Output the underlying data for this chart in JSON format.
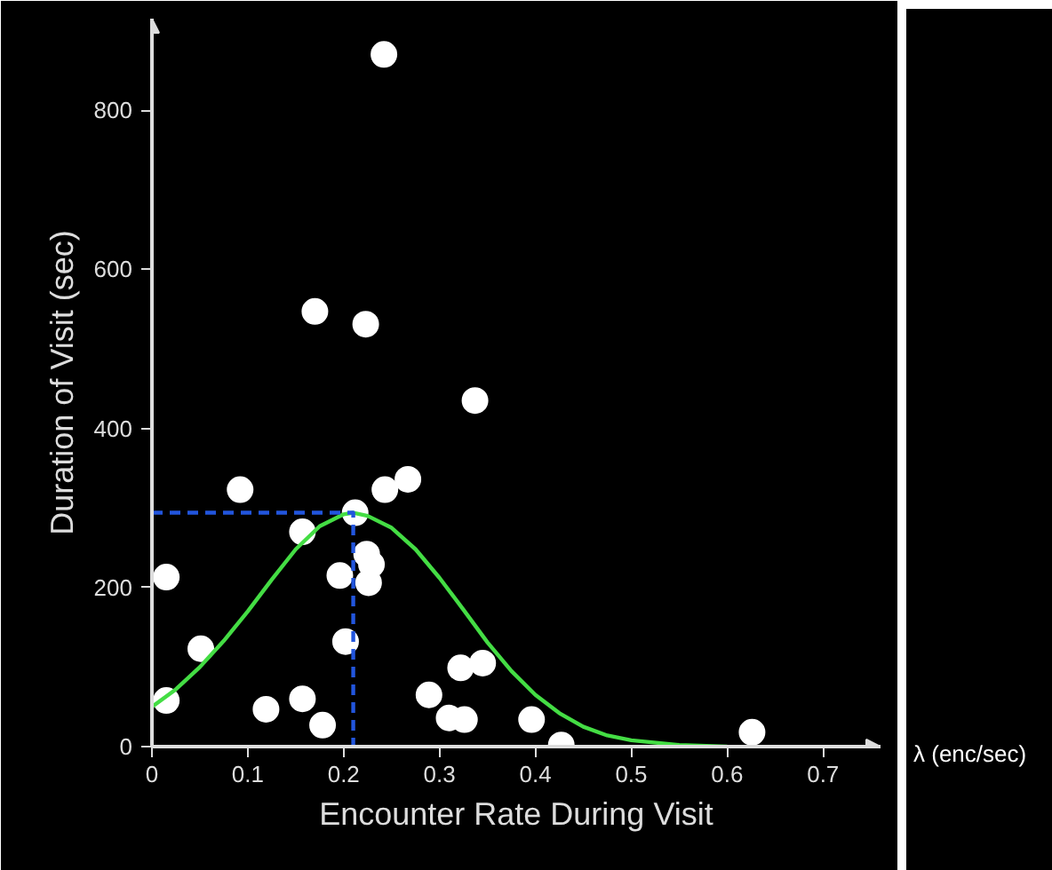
{
  "chart_data": {
    "type": "scatter",
    "xlabel": "Encounter Rate During Visit",
    "ylabel": "Duration of Visit (sec)",
    "annotations": [
      "λ (enc/sec)"
    ],
    "xlim": [
      0,
      0.76
    ],
    "ylim": [
      0,
      915
    ],
    "xticks": [
      0,
      0.1,
      0.2,
      0.3,
      0.4,
      0.5,
      0.6,
      0.7
    ],
    "yticks": [
      0,
      200,
      400,
      600,
      800
    ],
    "grid": false,
    "marker": "circle",
    "series": [
      {
        "color": "#ffffff",
        "x": [
          0.015,
          0.015,
          0.051,
          0.092,
          0.119,
          0.157,
          0.157,
          0.178,
          0.17,
          0.223,
          0.242,
          0.337,
          0.196,
          0.202,
          0.212,
          0.224,
          0.229,
          0.226,
          0.243,
          0.267,
          0.289,
          0.31,
          0.326,
          0.322,
          0.345,
          0.396,
          0.427,
          0.626
        ],
        "values": [
          58,
          213,
          123,
          323,
          47,
          60,
          270,
          27,
          547,
          531,
          870,
          435,
          215,
          132,
          294,
          242,
          229,
          206,
          323,
          336,
          65,
          36,
          34,
          99,
          105,
          34,
          2,
          18
        ]
      },
      {
        "type": "line",
        "marker": "none",
        "color": "#44dd44",
        "line_style": "solid",
        "x": [
          0,
          0.025,
          0.05,
          0.075,
          0.1,
          0.125,
          0.15,
          0.175,
          0.2,
          0.21,
          0.225,
          0.25,
          0.275,
          0.3,
          0.325,
          0.35,
          0.375,
          0.4,
          0.425,
          0.45,
          0.475,
          0.5,
          0.55,
          0.6
        ],
        "values": [
          50,
          72,
          100,
          133,
          170,
          210,
          248,
          277,
          292,
          294,
          290,
          275,
          248,
          212,
          172,
          131,
          95,
          65,
          42,
          25,
          14,
          8,
          2,
          0
        ]
      },
      {
        "type": "line",
        "marker": "none",
        "color": "#2255dd",
        "line_style": "dashed",
        "x": [
          0,
          0.21,
          0.21
        ],
        "values": [
          294,
          294,
          0
        ]
      }
    ]
  }
}
